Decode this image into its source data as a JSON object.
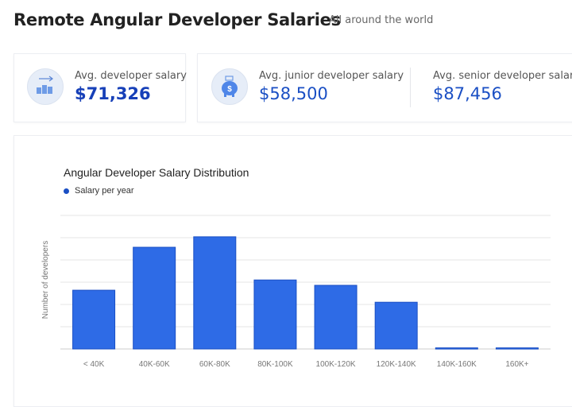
{
  "header": {
    "title": "Remote Angular Developer Salaries",
    "subtitle": "All around the world"
  },
  "stats": [
    {
      "label": "Avg. developer salary",
      "value": "$71,326",
      "icon": "bar-chart-arrow-icon"
    },
    {
      "label": "Avg. junior developer salary",
      "value": "$58,500",
      "icon": "piggy-bank-icon"
    },
    {
      "label": "Avg. senior developer salary",
      "value": "$87,456"
    }
  ],
  "colors": {
    "accent": "#2e6be6",
    "value_text": "#1a4fc4",
    "grid": "#e6e6e6"
  },
  "chart_data": {
    "type": "bar",
    "title": "Angular Developer Salary Distribution",
    "legend": {
      "position": "top-left",
      "entries": [
        "Salary per year"
      ]
    },
    "ylabel": "Number of developers",
    "xlabel": "",
    "categories": [
      "< 40K",
      "40K-60K",
      "60K-80K",
      "80K-100K",
      "100K-120K",
      "120K-140K",
      "140K-160K",
      "160K+"
    ],
    "series": [
      {
        "name": "Salary per year",
        "values": [
          2.64,
          4.57,
          5.04,
          3.1,
          2.86,
          2.1,
          0.05,
          0.05
        ]
      }
    ],
    "ylim": [
      0,
      6
    ],
    "grid": true,
    "y_tick_labels_shown": false
  }
}
